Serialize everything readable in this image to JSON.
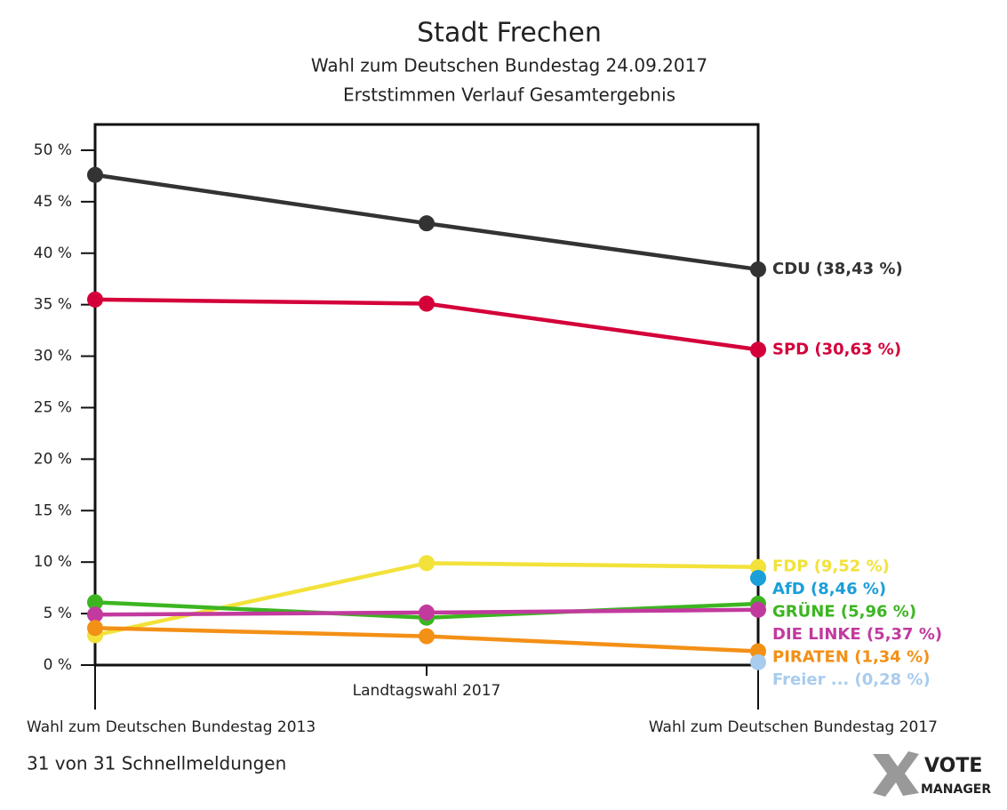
{
  "chart_data": {
    "type": "line",
    "title": "Stadt Frechen",
    "subtitle": [
      "Wahl zum Deutschen Bundestag 24.09.2017",
      "Erststimmen Verlauf Gesamtergebnis"
    ],
    "categories": [
      "Wahl zum Deutschen Bundestag 2013",
      "Landtagswahl 2017",
      "Wahl zum Deutschen Bundestag 2017"
    ],
    "ylim": [
      0,
      52.5
    ],
    "yticks": [
      {
        "value": 0,
        "label": "0 %"
      },
      {
        "value": 5,
        "label": "5 %"
      },
      {
        "value": 10,
        "label": "10 %"
      },
      {
        "value": 15,
        "label": "15 %"
      },
      {
        "value": 20,
        "label": "20 %"
      },
      {
        "value": 25,
        "label": "25 %"
      },
      {
        "value": 30,
        "label": "30 %"
      },
      {
        "value": 35,
        "label": "35 %"
      },
      {
        "value": 40,
        "label": "40 %"
      },
      {
        "value": 45,
        "label": "45 %"
      },
      {
        "value": 50,
        "label": "50 %"
      }
    ],
    "series": [
      {
        "color": "#333333",
        "values": [
          47.6,
          42.9,
          38.43
        ],
        "value_labels": [
          null,
          null,
          "CDU (38,43 %)"
        ]
      },
      {
        "color": "#d4003a",
        "values": [
          35.5,
          35.1,
          30.63
        ],
        "value_labels": [
          null,
          null,
          "SPD (30,63 %)"
        ]
      },
      {
        "color": "#f2e23a",
        "values": [
          2.9,
          9.9,
          9.52
        ],
        "value_labels": [
          null,
          null,
          "FDP (9,52 %)"
        ]
      },
      {
        "color": "#1a9fd9",
        "values": [
          null,
          null,
          8.46
        ],
        "value_labels": [
          null,
          null,
          "AfD (8,46 %)"
        ]
      },
      {
        "color": "#3cb521",
        "values": [
          6.1,
          4.6,
          5.96
        ],
        "value_labels": [
          null,
          null,
          "GRÜNE (5,96 %)"
        ]
      },
      {
        "color": "#c23a9e",
        "values": [
          4.9,
          5.1,
          5.37
        ],
        "value_labels": [
          null,
          null,
          "DIE LINKE (5,37 %)"
        ]
      },
      {
        "color": "#f39016",
        "values": [
          3.6,
          2.8,
          1.34
        ],
        "value_labels": [
          null,
          null,
          "PIRATEN (1,34 %)"
        ]
      },
      {
        "color": "#a8ccee",
        "values": [
          null,
          null,
          0.28
        ],
        "value_labels": [
          null,
          null,
          "Freier ... (0,28 %)"
        ]
      }
    ],
    "footer": "31 von 31 Schnellmeldungen",
    "logo": [
      "VOTE",
      "MANAGER"
    ]
  }
}
